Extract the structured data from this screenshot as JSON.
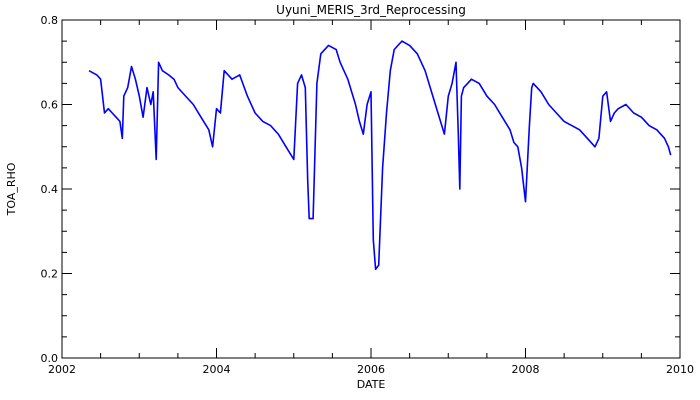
{
  "chart_data": {
    "type": "line",
    "title": "Uyuni_MERIS_3rd_Reprocessing",
    "xlabel": "DATE",
    "ylabel": "TOA_RHO",
    "xlim": [
      2002,
      2010
    ],
    "ylim": [
      0.0,
      0.8
    ],
    "x_ticks": [
      "2002",
      "2004",
      "2006",
      "2008",
      "2010"
    ],
    "y_ticks": [
      "0.0",
      "0.2",
      "0.4",
      "0.6",
      "0.8"
    ],
    "grid": false,
    "series_color": "#0000ff",
    "series": [
      {
        "x": [
          2002.35,
          2002.45,
          2002.5,
          2002.55,
          2002.6,
          2002.65,
          2002.7,
          2002.75,
          2002.78,
          2002.8,
          2002.85,
          2002.9,
          2002.95,
          2003.0,
          2003.05,
          2003.1,
          2003.15,
          2003.18,
          2003.22,
          2003.25,
          2003.3,
          2003.38,
          2003.45,
          2003.5,
          2003.6,
          2003.7,
          2003.8,
          2003.9,
          2003.95,
          2004.0,
          2004.05,
          2004.1,
          2004.15,
          2004.2,
          2004.3,
          2004.4,
          2004.5,
          2004.6,
          2004.7,
          2004.8,
          2004.9,
          2005.0,
          2005.05,
          2005.1,
          2005.15,
          2005.18,
          2005.2,
          2005.25,
          2005.3,
          2005.35,
          2005.45,
          2005.55,
          2005.6,
          2005.7,
          2005.8,
          2005.85,
          2005.9,
          2005.95,
          2006.0,
          2006.03,
          2006.06,
          2006.1,
          2006.15,
          2006.2,
          2006.25,
          2006.3,
          2006.35,
          2006.4,
          2006.5,
          2006.6,
          2006.7,
          2006.8,
          2006.9,
          2006.95,
          2007.0,
          2007.05,
          2007.1,
          2007.13,
          2007.15,
          2007.17,
          2007.2,
          2007.25,
          2007.3,
          2007.4,
          2007.5,
          2007.6,
          2007.7,
          2007.8,
          2007.85,
          2007.9,
          2007.95,
          2008.0,
          2008.05,
          2008.08,
          2008.1,
          2008.15,
          2008.2,
          2008.3,
          2008.4,
          2008.5,
          2008.6,
          2008.7,
          2008.8,
          2008.9,
          2008.95,
          2009.0,
          2009.05,
          2009.1,
          2009.15,
          2009.2,
          2009.3,
          2009.4,
          2009.5,
          2009.6,
          2009.7,
          2009.8,
          2009.85,
          2009.88
        ],
        "y": [
          0.68,
          0.67,
          0.66,
          0.58,
          0.59,
          0.58,
          0.57,
          0.56,
          0.52,
          0.62,
          0.64,
          0.69,
          0.66,
          0.62,
          0.57,
          0.64,
          0.6,
          0.63,
          0.47,
          0.7,
          0.68,
          0.67,
          0.66,
          0.64,
          0.62,
          0.6,
          0.57,
          0.54,
          0.5,
          0.59,
          0.58,
          0.68,
          0.67,
          0.66,
          0.67,
          0.62,
          0.58,
          0.56,
          0.55,
          0.53,
          0.5,
          0.47,
          0.65,
          0.67,
          0.64,
          0.42,
          0.33,
          0.33,
          0.65,
          0.72,
          0.74,
          0.73,
          0.7,
          0.66,
          0.6,
          0.56,
          0.53,
          0.6,
          0.63,
          0.28,
          0.21,
          0.22,
          0.45,
          0.58,
          0.68,
          0.73,
          0.74,
          0.75,
          0.74,
          0.72,
          0.68,
          0.62,
          0.56,
          0.53,
          0.62,
          0.65,
          0.7,
          0.53,
          0.4,
          0.62,
          0.64,
          0.65,
          0.66,
          0.65,
          0.62,
          0.6,
          0.57,
          0.54,
          0.51,
          0.5,
          0.45,
          0.37,
          0.55,
          0.64,
          0.65,
          0.64,
          0.63,
          0.6,
          0.58,
          0.56,
          0.55,
          0.54,
          0.52,
          0.5,
          0.52,
          0.62,
          0.63,
          0.56,
          0.58,
          0.59,
          0.6,
          0.58,
          0.57,
          0.55,
          0.54,
          0.52,
          0.5,
          0.48
        ]
      }
    ]
  }
}
